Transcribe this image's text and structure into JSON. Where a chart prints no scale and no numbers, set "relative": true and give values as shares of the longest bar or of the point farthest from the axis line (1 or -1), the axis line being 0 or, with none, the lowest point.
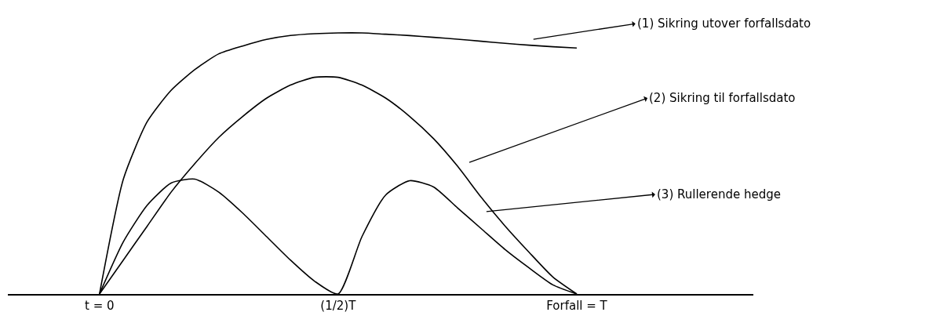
{
  "chart_data": {
    "type": "line",
    "relative": true,
    "categories": [
      "t = 0",
      null,
      null,
      null,
      null,
      null,
      null,
      null,
      null,
      null,
      "(1/2)T",
      null,
      null,
      null,
      null,
      null,
      null,
      null,
      null,
      null,
      "Forfall = T"
    ],
    "tick_labels": "x",
    "marker": "none",
    "line_style": "solid",
    "series": [
      {
        "color": "#000000",
        "values": [
          0,
          0.44,
          0.66,
          0.78,
          0.86,
          0.92,
          0.95,
          0.975,
          0.99,
          0.997,
          1,
          1,
          0.995,
          0.99,
          0.983,
          0.976,
          0.968,
          0.96,
          0.953,
          0.947,
          0.942
        ]
      },
      {
        "color": "#000000",
        "values": [
          0,
          0.13,
          0.26,
          0.39,
          0.5,
          0.6,
          0.68,
          0.75,
          0.8,
          0.83,
          0.83,
          0.8,
          0.75,
          0.68,
          0.595,
          0.49,
          0.37,
          0.26,
          0.16,
          0.065,
          0
        ]
      },
      {
        "color": "#000000",
        "values": [
          0,
          0.2,
          0.34,
          0.425,
          0.44,
          0.39,
          0.31,
          0.22,
          0.13,
          0.05,
          0,
          0.22,
          0.38,
          0.434,
          0.41,
          0.33,
          0.25,
          0.17,
          0.1,
          0.035,
          0
        ]
      }
    ],
    "annotations": [
      "(1) Sikring utover forfallsdato",
      "(2) Sikring til forfallsdato",
      "(3) Rullerende hedge"
    ]
  }
}
